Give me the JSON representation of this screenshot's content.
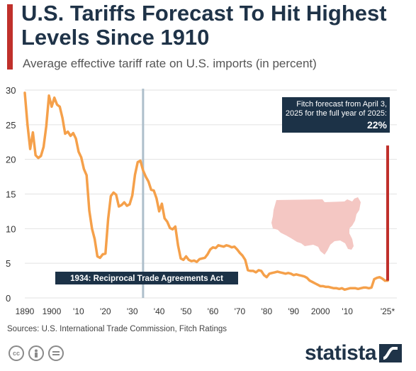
{
  "header": {
    "title": "U.S. Tariffs Forecast To Hit Highest Levels Since 1910",
    "subtitle": "Average effective tariff rate on U.S. imports (in percent)"
  },
  "footer": {
    "source": "Sources: U.S. International Trade Commission, Fitch Ratings",
    "brand": "statista",
    "license_icons": [
      "cc-icon",
      "attribution-icon",
      "no-derivatives-icon"
    ]
  },
  "colors": {
    "line": "#f5a04a",
    "forecast": "#c0302b",
    "annotation_bg": "#1c3247",
    "marker_line": "#aebfcb",
    "map_fill": "#f4c7c3",
    "title": "#1f3348"
  },
  "chart_data": {
    "type": "line",
    "title": "U.S. Tariffs Forecast To Hit Highest Levels Since 1910",
    "subtitle": "Average effective tariff rate on U.S. imports (in percent)",
    "xlabel": "",
    "ylabel": "",
    "xlim": [
      1890,
      2026
    ],
    "ylim": [
      0,
      30
    ],
    "yticks": [
      0,
      5,
      10,
      15,
      20,
      25,
      30
    ],
    "xticks": [
      {
        "value": 1890,
        "label": "1890"
      },
      {
        "value": 1900,
        "label": "1900"
      },
      {
        "value": 1910,
        "label": "'10"
      },
      {
        "value": 1920,
        "label": "'20"
      },
      {
        "value": 1930,
        "label": "'30"
      },
      {
        "value": 1940,
        "label": "'40"
      },
      {
        "value": 1950,
        "label": "'50"
      },
      {
        "value": 1960,
        "label": "'60"
      },
      {
        "value": 1970,
        "label": "'70"
      },
      {
        "value": 1980,
        "label": "'80"
      },
      {
        "value": 1990,
        "label": "'90"
      },
      {
        "value": 2000,
        "label": "2000"
      },
      {
        "value": 2010,
        "label": "'10"
      },
      {
        "value": 2025,
        "label": "'25*"
      }
    ],
    "grid": "horizontal",
    "series": [
      {
        "x": [
          1890,
          1891,
          1892,
          1893,
          1894,
          1895,
          1896,
          1897,
          1898,
          1899,
          1900,
          1901,
          1902,
          1903,
          1904,
          1905,
          1906,
          1907,
          1908,
          1909,
          1910,
          1911,
          1912,
          1913,
          1914,
          1915,
          1916,
          1917,
          1918,
          1919,
          1920,
          1921,
          1922,
          1923,
          1924,
          1925,
          1926,
          1927,
          1928,
          1929,
          1930,
          1931,
          1932,
          1933,
          1934,
          1935,
          1936,
          1937,
          1938,
          1939,
          1940,
          1941,
          1942,
          1943,
          1944,
          1945,
          1946,
          1947,
          1948,
          1949,
          1950,
          1951,
          1952,
          1953,
          1954,
          1955,
          1956,
          1957,
          1958,
          1959,
          1960,
          1961,
          1962,
          1963,
          1964,
          1965,
          1966,
          1967,
          1968,
          1969,
          1970,
          1971,
          1972,
          1973,
          1974,
          1975,
          1976,
          1977,
          1978,
          1979,
          1980,
          1981,
          1982,
          1983,
          1984,
          1985,
          1986,
          1987,
          1988,
          1989,
          1990,
          1991,
          1992,
          1993,
          1994,
          1995,
          1996,
          1997,
          1998,
          1999,
          2000,
          2001,
          2002,
          2003,
          2004,
          2005,
          2006,
          2007,
          2008,
          2009,
          2010,
          2011,
          2012,
          2013,
          2014,
          2015,
          2016,
          2017,
          2018,
          2019,
          2020,
          2021,
          2022,
          2023,
          2024
        ],
        "values": [
          29.6,
          25.0,
          21.5,
          23.9,
          20.6,
          20.2,
          20.5,
          21.8,
          24.8,
          29.2,
          27.6,
          28.9,
          27.9,
          27.6,
          26.0,
          23.7,
          24.0,
          23.4,
          23.8,
          23.0,
          21.1,
          20.3,
          18.6,
          17.7,
          12.6,
          10.0,
          8.5,
          6.0,
          5.8,
          6.3,
          6.4,
          11.4,
          14.7,
          15.2,
          14.9,
          13.2,
          13.4,
          13.8,
          13.3,
          13.5,
          14.8,
          17.8,
          19.6,
          19.8,
          18.4,
          17.5,
          16.8,
          15.6,
          15.5,
          14.4,
          12.5,
          13.6,
          11.5,
          11.0,
          10.1,
          9.9,
          10.3,
          7.6,
          5.7,
          5.5,
          6.0,
          5.5,
          5.3,
          5.4,
          5.2,
          5.6,
          5.7,
          5.8,
          6.3,
          7.0,
          7.3,
          7.2,
          7.6,
          7.5,
          7.4,
          7.6,
          7.5,
          7.3,
          7.4,
          7.0,
          6.5,
          6.1,
          5.5,
          4.0,
          3.9,
          3.9,
          3.7,
          4.0,
          3.9,
          3.3,
          3.0,
          3.5,
          3.6,
          3.7,
          3.8,
          3.7,
          3.6,
          3.5,
          3.6,
          3.5,
          3.3,
          3.4,
          3.3,
          3.2,
          3.1,
          2.9,
          2.5,
          2.3,
          2.1,
          1.9,
          1.7,
          1.7,
          1.6,
          1.6,
          1.5,
          1.4,
          1.4,
          1.3,
          1.4,
          1.2,
          1.3,
          1.4,
          1.4,
          1.4,
          1.3,
          1.4,
          1.5,
          1.5,
          1.4,
          1.5,
          2.7,
          2.9,
          3.0,
          2.8,
          2.5
        ]
      }
    ],
    "forecast": {
      "x": 2025,
      "from": 2.5,
      "value": 22
    },
    "annotations": [
      {
        "x": 1934,
        "label": "1934: Reciprocal Trade Agreements Act"
      },
      {
        "x": 2025,
        "label_lines": [
          "Fitch forecast from April 3,",
          "2025 for the full year of 2025:"
        ],
        "value_label": "22%"
      }
    ]
  }
}
